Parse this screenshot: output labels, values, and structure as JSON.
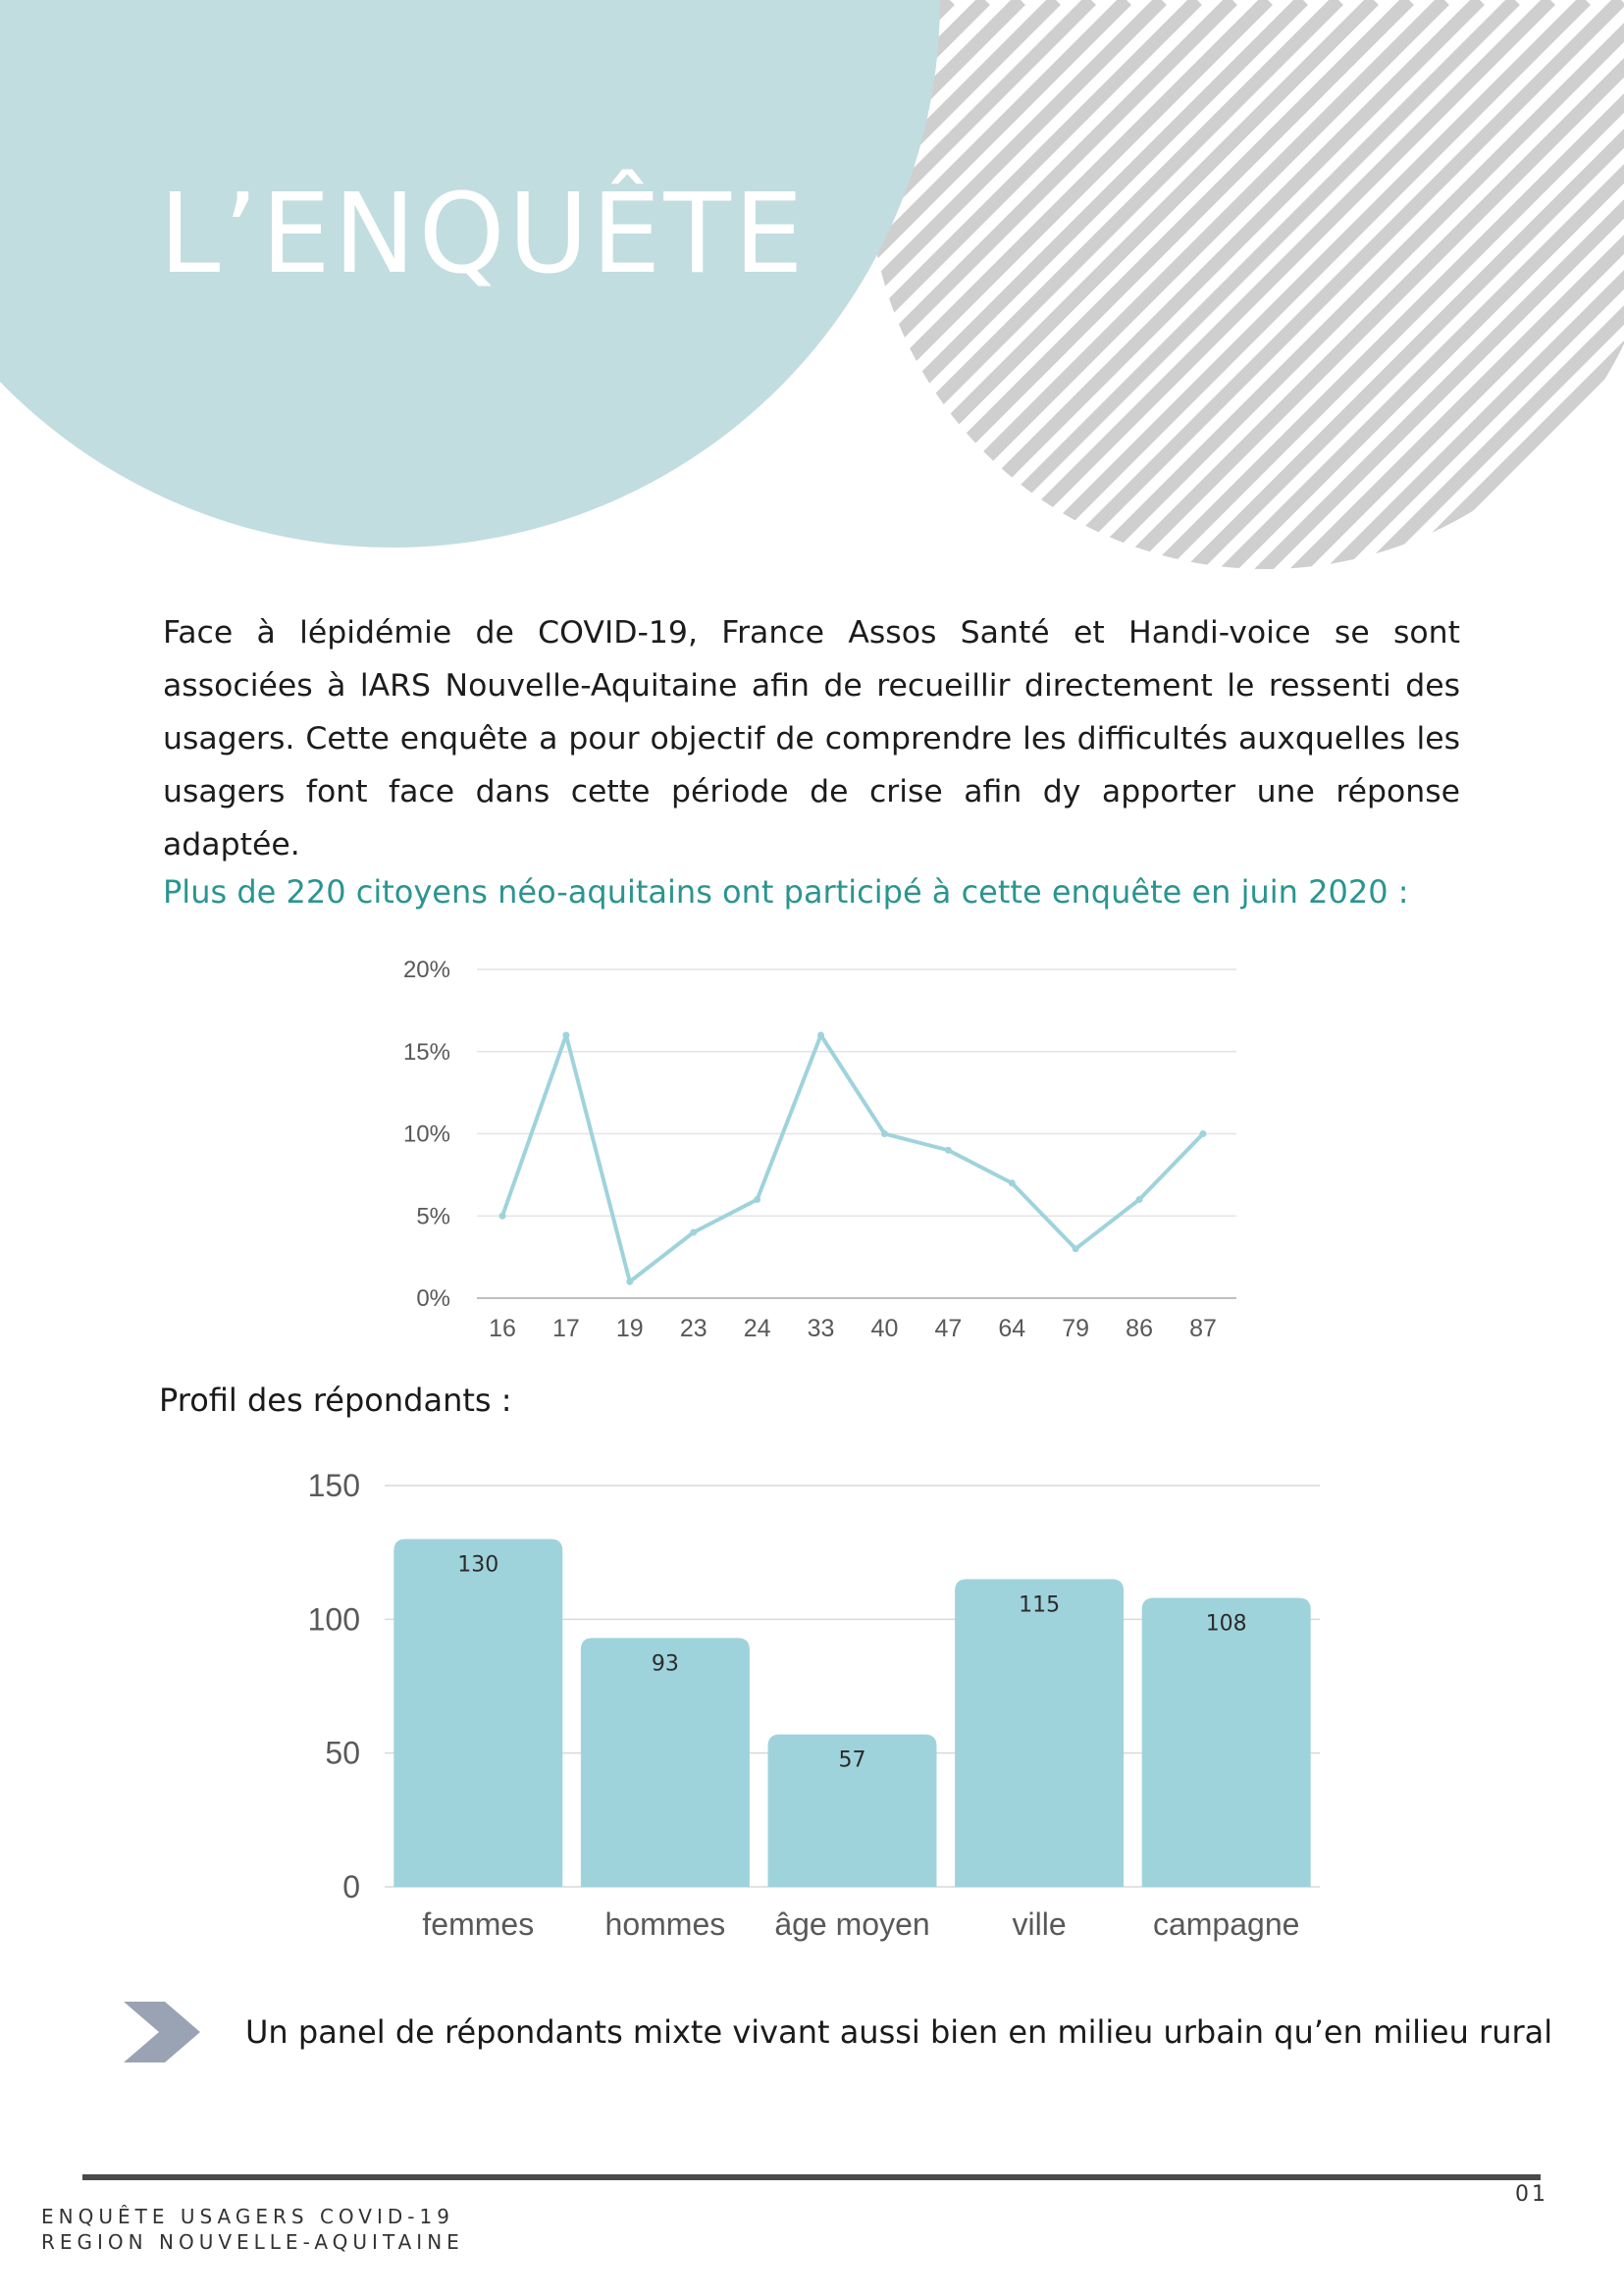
{
  "page": {
    "title": "L’ENQUÊTE",
    "intro": "Face à lépidémie de COVID-19, France Assos Santé et Handi-voice se sont associées à lARS Nouvelle-Aquitaine afin de recueillir directement le ressenti des usagers. Cette enquête a pour objectif de comprendre les difficultés auxquelles les usagers font face dans cette période de crise afin dy apporter une réponse adaptée.",
    "line_caption": "Plus de 220 citoyens néo-aquitains ont participé à cette enquête en juin 2020 :",
    "bar_caption": "Profil des répondants :",
    "callout": "Un panel de répondants mixte vivant aussi bien en milieu urbain qu’en milieu rural",
    "page_number": "01",
    "footer_line1": "ENQUÊTE USAGERS COVID-19",
    "footer_line2": "REGION NOUVELLE-AQUITAINE"
  },
  "colors": {
    "circle": "#c1dde0",
    "stripes": "#cfcfcf",
    "title_text": "#ffffff",
    "caption_teal": "#2a9590",
    "line_series": "#9fd3dc",
    "bar_fill": "#9fd3dc",
    "arrow": "#9aa3b3",
    "footer_rule": "#4a4a4a"
  },
  "icons": {
    "callout": "chevron-arrow-icon"
  },
  "chart_data": [
    {
      "type": "line",
      "x": [
        "16",
        "17",
        "19",
        "23",
        "24",
        "33",
        "40",
        "47",
        "64",
        "79",
        "86",
        "87"
      ],
      "y_format": "percent",
      "yticks": [
        "0%",
        "5%",
        "10%",
        "15%",
        "20%"
      ],
      "ylim": [
        0,
        20
      ],
      "series": [
        {
          "values": [
            5,
            16,
            1,
            4,
            6,
            16,
            10,
            9,
            7,
            3,
            6,
            10
          ]
        }
      ],
      "grid": true,
      "legend": "none"
    },
    {
      "type": "bar",
      "categories": [
        "femmes",
        "hommes",
        "âge moyen",
        "ville",
        "campagne"
      ],
      "values": [
        130,
        93,
        57,
        115,
        108
      ],
      "data_labels": [
        "130",
        "93",
        "57",
        "115",
        "108"
      ],
      "yticks": [
        "0",
        "50",
        "100",
        "150"
      ],
      "ylim": [
        0,
        150
      ],
      "grid": true,
      "legend": "none"
    }
  ]
}
